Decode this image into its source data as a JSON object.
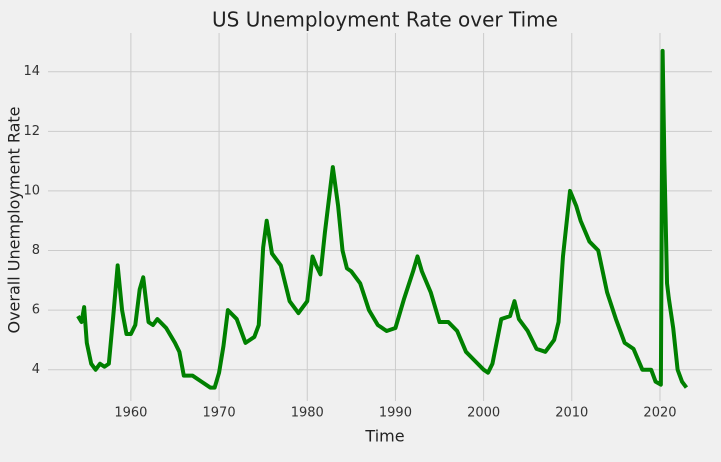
{
  "chart_data": {
    "type": "line",
    "title": "US Unemployment Rate over Time",
    "x_label": "Time",
    "y_label": "Overall Unemployment Rate",
    "x": [
      1954.0,
      1954.4,
      1954.7,
      1955.0,
      1955.5,
      1956.0,
      1956.5,
      1957.0,
      1957.5,
      1958.0,
      1958.5,
      1959.0,
      1959.5,
      1960.0,
      1960.5,
      1961.0,
      1961.4,
      1962.0,
      1962.5,
      1963.0,
      1964.0,
      1965.0,
      1965.5,
      1966.0,
      1967.0,
      1968.0,
      1969.0,
      1969.5,
      1970.0,
      1970.5,
      1971.0,
      1972.0,
      1973.0,
      1974.0,
      1974.5,
      1975.0,
      1975.4,
      1976.0,
      1977.0,
      1978.0,
      1979.0,
      1980.0,
      1980.6,
      1981.0,
      1981.5,
      1982.0,
      1982.9,
      1983.5,
      1984.0,
      1984.5,
      1985.0,
      1986.0,
      1987.0,
      1988.0,
      1989.0,
      1990.0,
      1991.0,
      1992.0,
      1992.5,
      1993.0,
      1994.0,
      1995.0,
      1996.0,
      1997.0,
      1998.0,
      1999.0,
      2000.0,
      2000.5,
      2001.0,
      2002.0,
      2003.0,
      2003.5,
      2004.0,
      2005.0,
      2006.0,
      2007.0,
      2008.0,
      2008.5,
      2009.0,
      2009.8,
      2010.5,
      2011.0,
      2012.0,
      2013.0,
      2014.0,
      2015.0,
      2016.0,
      2017.0,
      2018.0,
      2019.0,
      2019.5,
      2020.1,
      2020.3,
      2020.5,
      2020.8,
      2021.0,
      2021.5,
      2022.0,
      2022.5,
      2023.0
    ],
    "series": [
      {
        "name": "Overall Unemployment Rate",
        "color": "#008000",
        "values": [
          5.8,
          5.6,
          6.1,
          4.9,
          4.2,
          4.0,
          4.2,
          4.1,
          4.2,
          5.8,
          7.5,
          6.0,
          5.2,
          5.2,
          5.5,
          6.7,
          7.1,
          5.6,
          5.5,
          5.7,
          5.4,
          4.9,
          4.6,
          3.8,
          3.8,
          3.6,
          3.4,
          3.4,
          3.9,
          4.8,
          6.0,
          5.7,
          4.9,
          5.1,
          5.5,
          8.1,
          9.0,
          7.9,
          7.5,
          6.3,
          5.9,
          6.3,
          7.8,
          7.5,
          7.2,
          8.6,
          10.8,
          9.5,
          8.0,
          7.4,
          7.3,
          6.9,
          6.0,
          5.5,
          5.3,
          5.4,
          6.4,
          7.3,
          7.8,
          7.3,
          6.6,
          5.6,
          5.6,
          5.3,
          4.6,
          4.3,
          4.0,
          3.9,
          4.2,
          5.7,
          5.8,
          6.3,
          5.7,
          5.3,
          4.7,
          4.6,
          5.0,
          5.6,
          7.8,
          10.0,
          9.5,
          9.0,
          8.3,
          8.0,
          6.6,
          5.7,
          4.9,
          4.7,
          4.0,
          4.0,
          3.6,
          3.5,
          14.7,
          11.0,
          6.9,
          6.4,
          5.4,
          4.0,
          3.6,
          3.4
        ]
      }
    ],
    "xlim": [
      1950.6,
      2025.9
    ],
    "xticks": [
      1960,
      1970,
      1980,
      1990,
      2000,
      2010,
      2020
    ],
    "ylim": [
      2.95,
      15.3
    ],
    "yticks": [
      4,
      6,
      8,
      10,
      12,
      14
    ],
    "grid": true
  }
}
